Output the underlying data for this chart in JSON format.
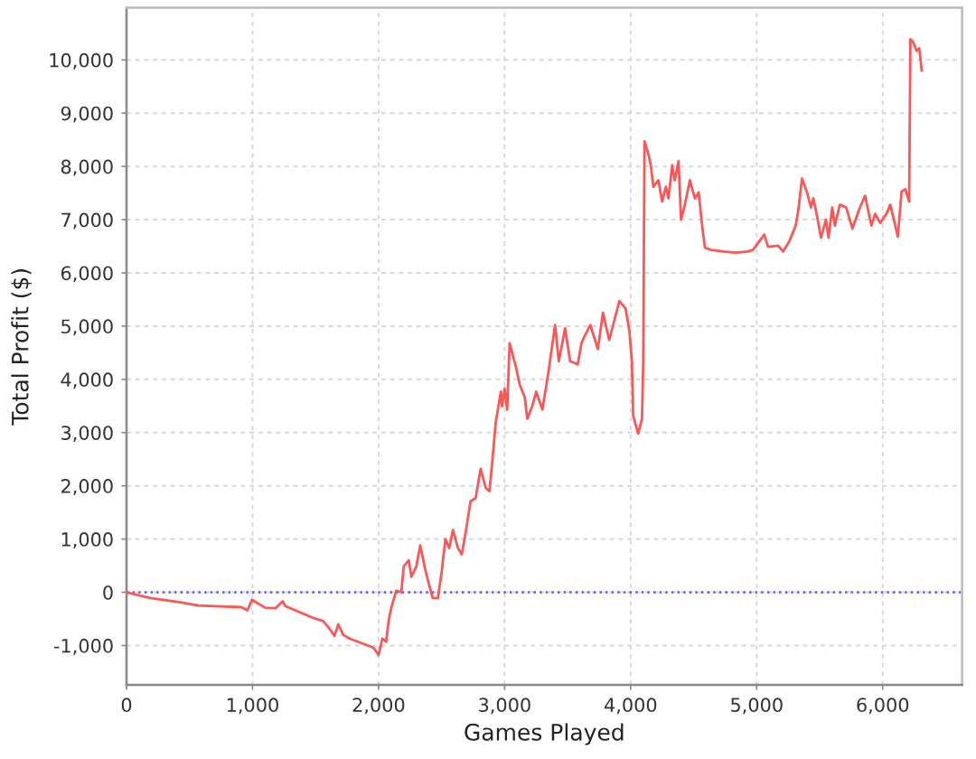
{
  "chart_data": {
    "type": "line",
    "xlabel": "Games Played",
    "ylabel": "Total Profit ($)",
    "xlim": [
      0,
      6630
    ],
    "ylim": [
      -1740,
      10980
    ],
    "xticks": [
      0,
      {
        "value": 1000,
        "label": "1,000"
      },
      {
        "value": 2000,
        "label": "2,000"
      },
      {
        "value": 3000,
        "label": "3,000"
      },
      {
        "value": 4000,
        "label": "4,000"
      },
      {
        "value": 5000,
        "label": "5,000"
      },
      {
        "value": 6000,
        "label": "6,000"
      }
    ],
    "yticks": [
      {
        "value": -1000,
        "label": "-1,000"
      },
      0,
      {
        "value": 1000,
        "label": "1,000"
      },
      {
        "value": 2000,
        "label": "2,000"
      },
      {
        "value": 3000,
        "label": "3,000"
      },
      {
        "value": 4000,
        "label": "4,000"
      },
      {
        "value": 5000,
        "label": "5,000"
      },
      {
        "value": 6000,
        "label": "6,000"
      },
      {
        "value": 7000,
        "label": "7,000"
      },
      {
        "value": 8000,
        "label": "8,000"
      },
      {
        "value": 9000,
        "label": "9,000"
      },
      {
        "value": 10000,
        "label": "10,000"
      }
    ],
    "grid": true,
    "marker": "none",
    "line_style": "solid",
    "ref_lines": [
      {
        "axis": "y",
        "value": 0,
        "color": "#5a5aff",
        "line_style": "dotted"
      }
    ],
    "series": [
      {
        "color": "#ff5555",
        "x": [
          0,
          190,
          430,
          570,
          910,
          960,
          995,
          1100,
          1180,
          1240,
          1260,
          1390,
          1480,
          1560,
          1600,
          1650,
          1680,
          1720,
          1770,
          1870,
          1960,
          2000,
          2030,
          2060,
          2080,
          2100,
          2140,
          2180,
          2200,
          2240,
          2260,
          2300,
          2330,
          2370,
          2400,
          2430,
          2470,
          2500,
          2530,
          2560,
          2590,
          2630,
          2660,
          2690,
          2730,
          2770,
          2810,
          2850,
          2880,
          2900,
          2930,
          2970,
          2980,
          3000,
          3020,
          3040,
          3090,
          3120,
          3160,
          3180,
          3220,
          3250,
          3300,
          3350,
          3400,
          3430,
          3480,
          3520,
          3580,
          3610,
          3630,
          3680,
          3740,
          3780,
          3830,
          3870,
          3910,
          3960,
          3990,
          4010,
          4020,
          4060,
          4090,
          4100,
          4110,
          4140,
          4160,
          4180,
          4220,
          4250,
          4280,
          4300,
          4330,
          4350,
          4380,
          4400,
          4430,
          4470,
          4510,
          4540,
          4570,
          4590,
          4640,
          4740,
          4830,
          4930,
          4970,
          5060,
          5090,
          5170,
          5210,
          5260,
          5310,
          5330,
          5360,
          5400,
          5430,
          5450,
          5480,
          5510,
          5550,
          5570,
          5600,
          5620,
          5660,
          5710,
          5760,
          5810,
          5860,
          5910,
          5940,
          5980,
          6030,
          6060,
          6100,
          6120,
          6150,
          6180,
          6210,
          6220,
          6240,
          6270,
          6290,
          6310
        ],
        "values": [
          0,
          -110,
          -190,
          -250,
          -280,
          -340,
          -140,
          -290,
          -300,
          -170,
          -260,
          -390,
          -480,
          -540,
          -650,
          -820,
          -600,
          -800,
          -870,
          -960,
          -1040,
          -1180,
          -870,
          -930,
          -530,
          -300,
          30,
          0,
          490,
          600,
          290,
          490,
          880,
          430,
          150,
          -110,
          -110,
          370,
          1000,
          830,
          1170,
          830,
          710,
          1110,
          1710,
          1770,
          2320,
          1960,
          1900,
          2400,
          3200,
          3770,
          3490,
          3830,
          3430,
          4680,
          4230,
          3900,
          3660,
          3260,
          3500,
          3770,
          3430,
          4170,
          5020,
          4340,
          4960,
          4340,
          4280,
          4680,
          4790,
          5020,
          4570,
          5250,
          4740,
          5100,
          5470,
          5330,
          4910,
          4340,
          3320,
          2980,
          3260,
          4280,
          8470,
          8240,
          8020,
          7620,
          7740,
          7340,
          7620,
          7400,
          8020,
          7740,
          8100,
          7000,
          7280,
          7740,
          7400,
          7510,
          6830,
          6470,
          6430,
          6400,
          6380,
          6400,
          6430,
          6720,
          6490,
          6510,
          6400,
          6600,
          6890,
          7170,
          7770,
          7510,
          7230,
          7400,
          7060,
          6660,
          7000,
          6660,
          7230,
          6890,
          7280,
          7230,
          6830,
          7170,
          7450,
          6890,
          7110,
          6940,
          7110,
          7280,
          6890,
          6680,
          7530,
          7570,
          7340,
          10390,
          10340,
          10170,
          10220,
          9800
        ]
      }
    ]
  }
}
